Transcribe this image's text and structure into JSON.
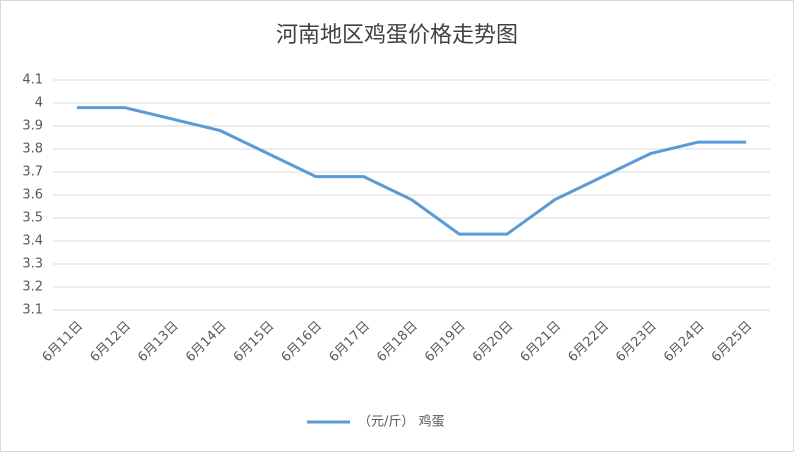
{
  "chart_data": {
    "type": "line",
    "title": "河南地区鸡蛋价格走势图",
    "categories": [
      "6月11日",
      "6月12日",
      "6月13日",
      "6月14日",
      "6月15日",
      "6月16日",
      "6月17日",
      "6月18日",
      "6月19日",
      "6月20日",
      "6月21日",
      "6月22日",
      "6月23日",
      "6月24日",
      "6月25日"
    ],
    "series": [
      {
        "name": "（元/斤） 鸡蛋",
        "color": "#5b9bd5",
        "values": [
          3.98,
          3.98,
          3.93,
          3.88,
          3.78,
          3.68,
          3.68,
          3.58,
          3.43,
          3.43,
          3.58,
          3.68,
          3.78,
          3.83,
          3.83
        ]
      }
    ],
    "ylim": [
      3.1,
      4.1
    ],
    "yticks": [
      3.1,
      3.2,
      3.3,
      3.4,
      3.5,
      3.6,
      3.7,
      3.8,
      3.9,
      4,
      4.1
    ],
    "grid": true,
    "legend": "bottom"
  }
}
